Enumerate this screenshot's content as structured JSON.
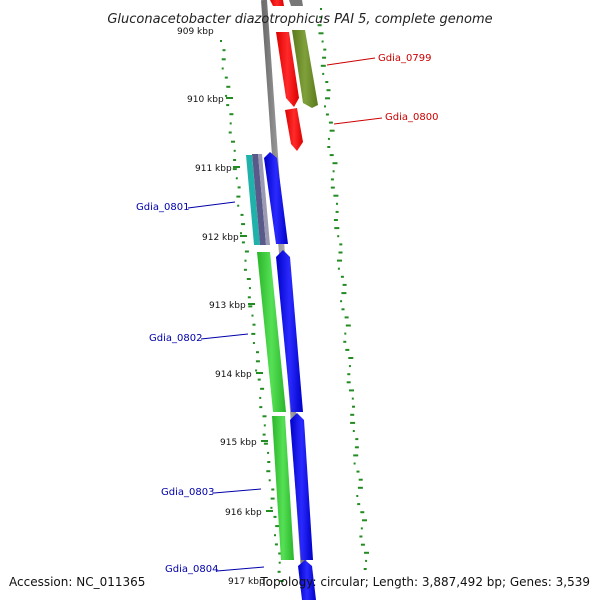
{
  "title": "Gluconacetobacter diazotrophicus PAI 5, complete genome",
  "footer": {
    "accession": "Accession: NC_011365",
    "stats": "Topology: circular; Length: 3,887,492 bp; Genes: 3,539"
  },
  "ticks": [
    "909 kbp",
    "910 kbp",
    "911 kbp",
    "912 kbp",
    "913 kbp",
    "914 kbp",
    "915 kbp",
    "916 kbp",
    "917 kbp"
  ],
  "genes": [
    {
      "name": "Gdia_0799",
      "color": "#cc0000"
    },
    {
      "name": "Gdia_0800",
      "color": "#cc0000"
    },
    {
      "name": "Gdia_0801",
      "color": "#0000aa"
    },
    {
      "name": "Gdia_0802",
      "color": "#0000aa"
    },
    {
      "name": "Gdia_0803",
      "color": "#0000aa"
    },
    {
      "name": "Gdia_0804",
      "color": "#0000aa"
    }
  ],
  "colors": {
    "backbone": "#888888",
    "cds_forward_red": "#ff0000",
    "cds_forward_olive": "#6b8e23",
    "cds_reverse_blue": "#0000ee",
    "cds_green": "#33cc33",
    "gc_skew": "#228b22",
    "teal": "#20b2aa",
    "slate": "#6a6a9a"
  }
}
